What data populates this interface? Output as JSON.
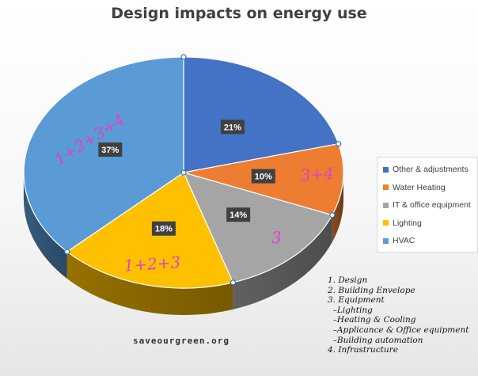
{
  "chart_data": {
    "type": "pie",
    "title": "Design impacts on energy use",
    "style": "3d-exploded",
    "categories": [
      "Other & adjustments",
      "Water Heating",
      "IT & office equipment",
      "Lighting",
      "HVAC"
    ],
    "values": [
      21,
      10,
      14,
      18,
      37
    ],
    "data_labels": [
      "21%",
      "10%",
      "14%",
      "18%",
      "37%"
    ],
    "colors": [
      "#4472c4",
      "#ed7d31",
      "#a5a5a5",
      "#ffc000",
      "#5b9bd5"
    ],
    "legend_position": "right",
    "annotations": [
      "",
      "3+4",
      "3",
      "1+2+3",
      "1+2+3+4"
    ]
  },
  "notes": [
    "1. Design",
    "2. Building Envelope",
    "3. Equipment",
    "  –Lighting",
    "  –Heating & Cooling",
    "  –Applicance & Office equipment",
    "  –Building automation",
    "4. Infrastructure"
  ],
  "watermark": "saveourgreen.org"
}
